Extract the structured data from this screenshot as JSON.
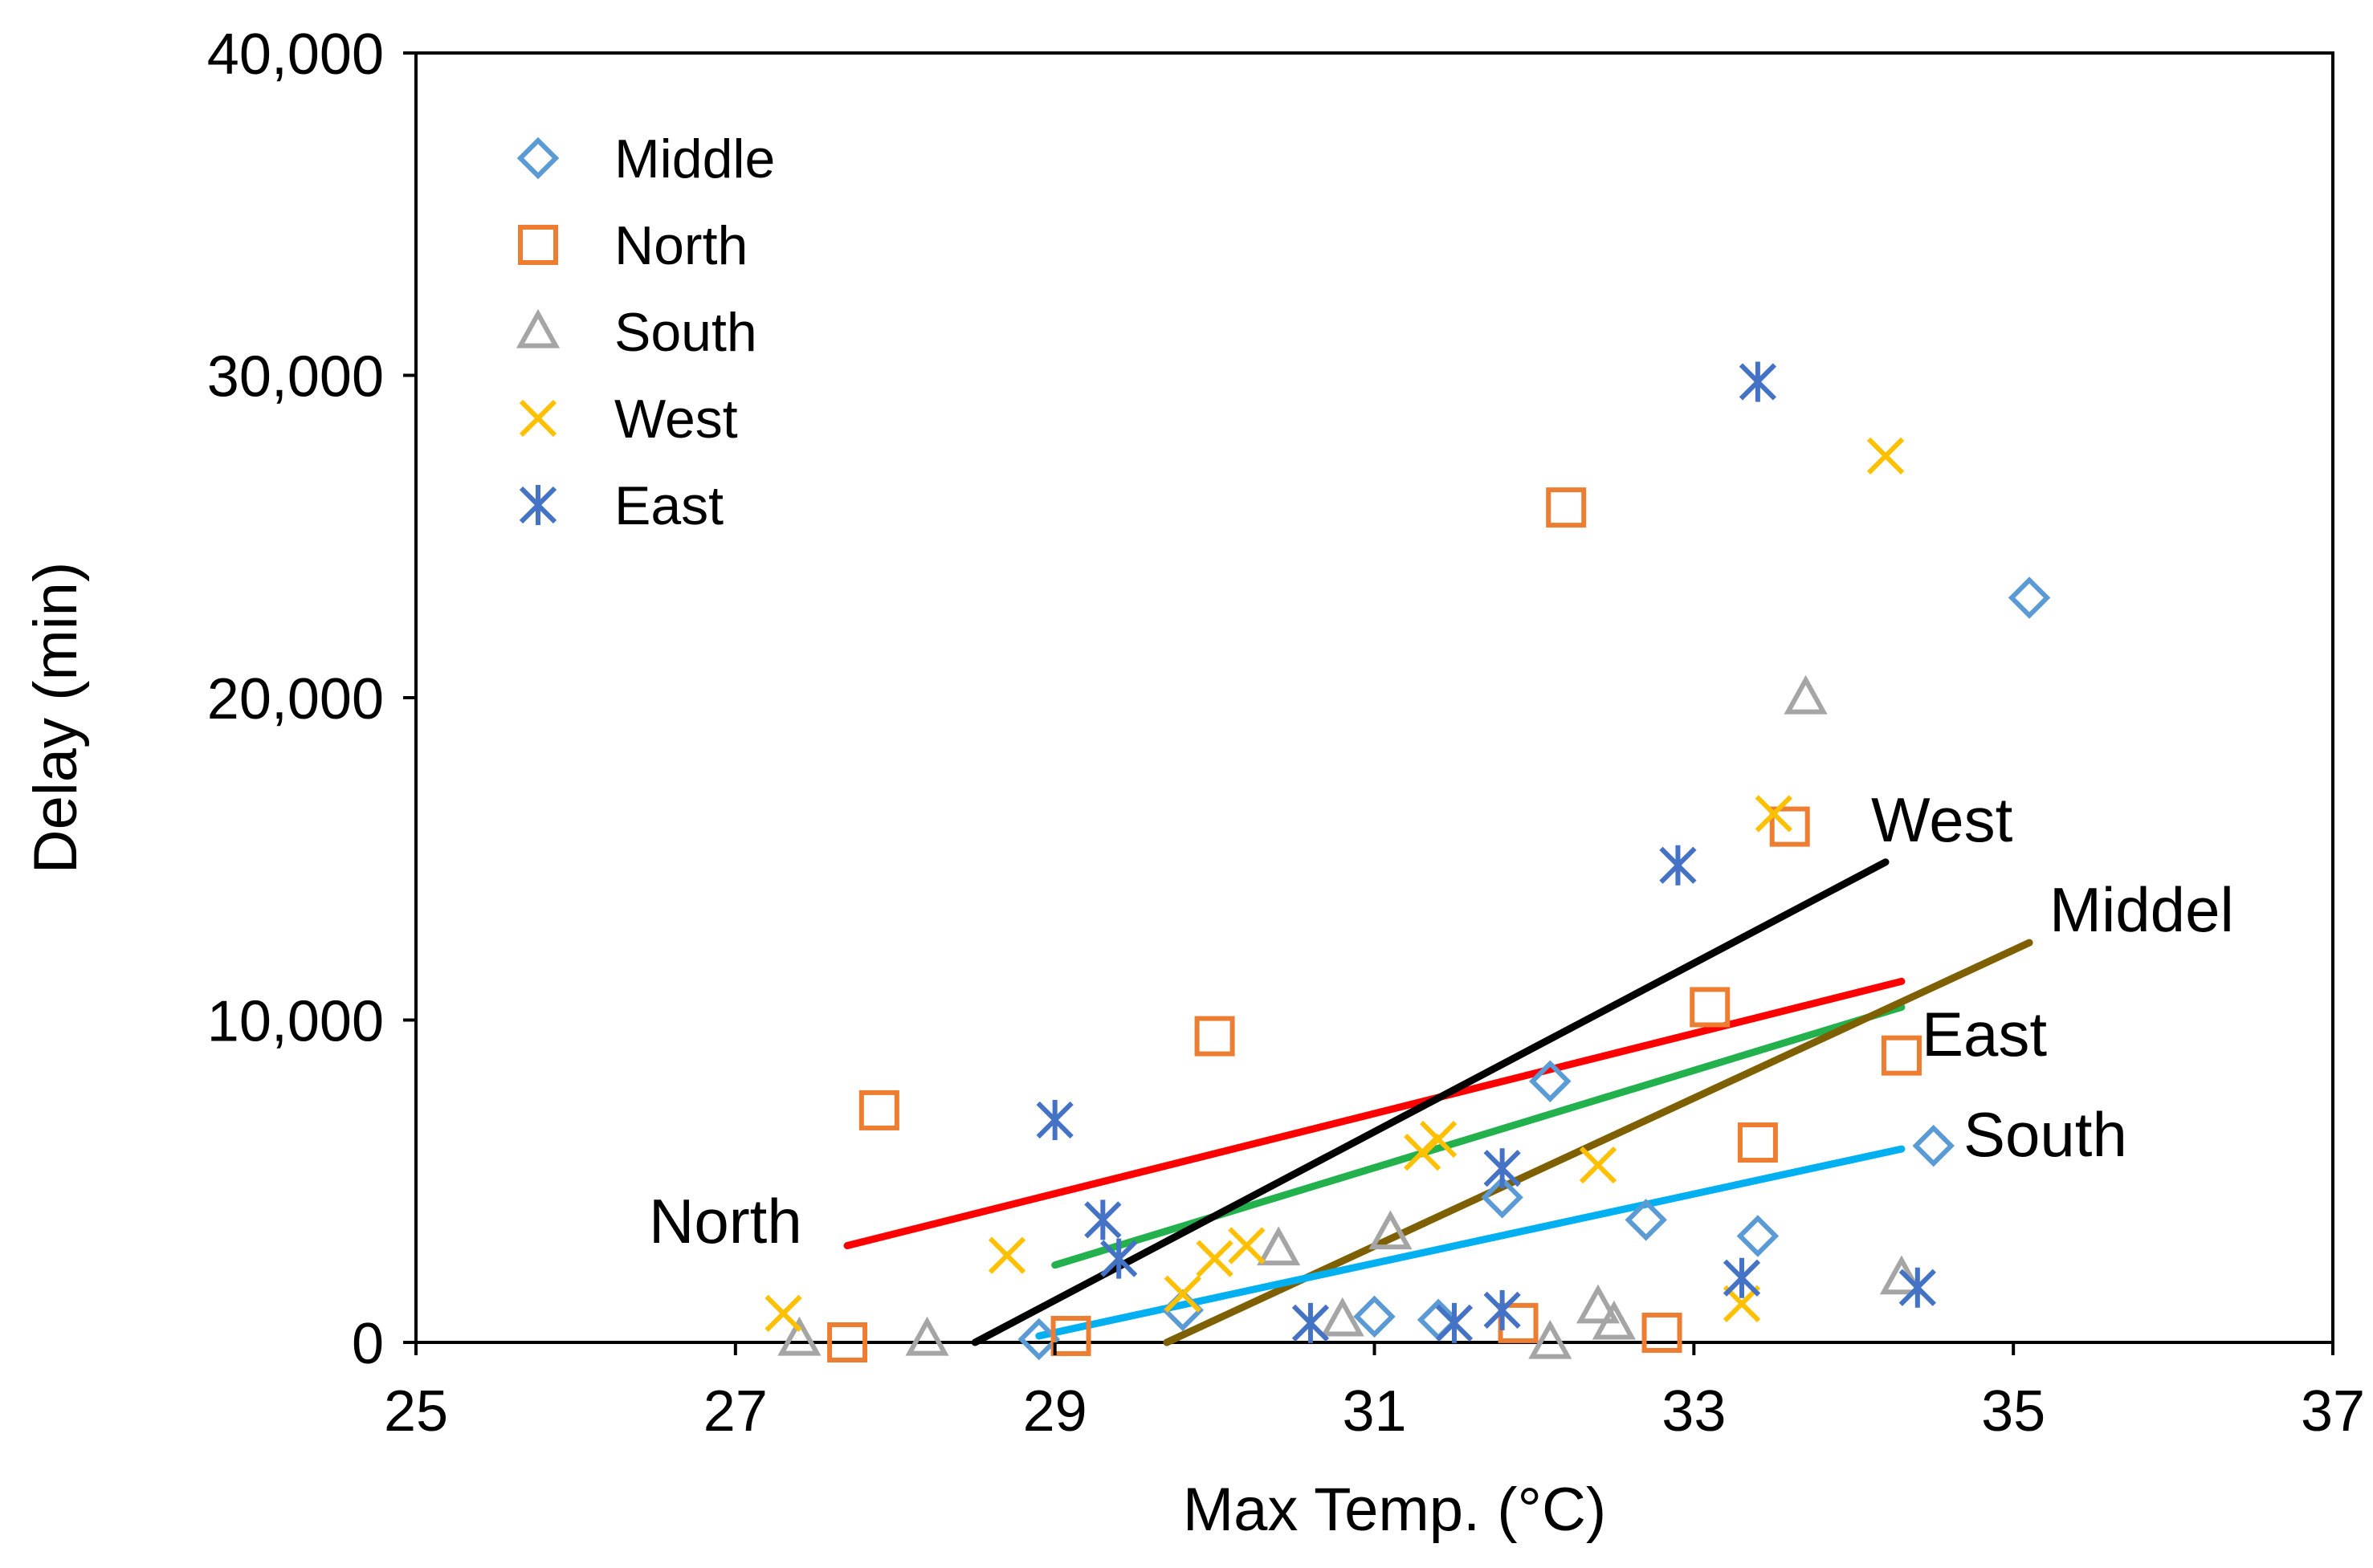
{
  "chart_data": {
    "type": "scatter",
    "title": "",
    "xlabel": "Max Temp. (°C)",
    "ylabel": "Delay (min)",
    "xlim": [
      25,
      37
    ],
    "ylim": [
      0,
      40000
    ],
    "xticks": [
      25,
      27,
      29,
      31,
      33,
      35,
      37
    ],
    "yticks": [
      0,
      10000,
      20000,
      30000,
      40000
    ],
    "x_tick_labels": [
      "25",
      "27",
      "29",
      "31",
      "33",
      "35",
      "37"
    ],
    "y_tick_labels": [
      "0",
      "10,000",
      "20,000",
      "30,000",
      "40,000"
    ],
    "grid": false,
    "legend_position": "top-left",
    "series": [
      {
        "name": "Middle",
        "marker": "diamond",
        "color": "#5B9BD5",
        "points": [
          [
            28.9,
            100
          ],
          [
            29.8,
            1000
          ],
          [
            31.0,
            800
          ],
          [
            31.4,
            700
          ],
          [
            31.8,
            4500
          ],
          [
            32.1,
            8100
          ],
          [
            32.7,
            3800
          ],
          [
            33.4,
            3300
          ],
          [
            34.5,
            6100
          ],
          [
            35.1,
            23100
          ]
        ]
      },
      {
        "name": "North",
        "marker": "square",
        "color": "#ED7D31",
        "points": [
          [
            27.7,
            0
          ],
          [
            27.9,
            7200
          ],
          [
            29.1,
            200
          ],
          [
            30.0,
            9500
          ],
          [
            31.9,
            600
          ],
          [
            32.2,
            25900
          ],
          [
            32.8,
            300
          ],
          [
            33.1,
            10400
          ],
          [
            33.4,
            6200
          ],
          [
            33.6,
            16000
          ],
          [
            34.3,
            8900
          ]
        ]
      },
      {
        "name": "South",
        "marker": "triangle",
        "color": "#A5A5A5",
        "points": [
          [
            27.4,
            100
          ],
          [
            28.2,
            100
          ],
          [
            30.4,
            2900
          ],
          [
            30.8,
            700
          ],
          [
            31.1,
            3400
          ],
          [
            32.1,
            0
          ],
          [
            32.4,
            1100
          ],
          [
            32.5,
            600
          ],
          [
            33.7,
            20000
          ],
          [
            34.3,
            2000
          ]
        ]
      },
      {
        "name": "West",
        "marker": "x",
        "color": "#FFC000",
        "points": [
          [
            27.3,
            900
          ],
          [
            28.7,
            2700
          ],
          [
            29.8,
            1500
          ],
          [
            30.0,
            2600
          ],
          [
            30.2,
            3000
          ],
          [
            31.3,
            5900
          ],
          [
            31.4,
            6300
          ],
          [
            32.4,
            5500
          ],
          [
            33.3,
            1200
          ],
          [
            33.5,
            16400
          ],
          [
            34.2,
            27500
          ]
        ]
      },
      {
        "name": "East",
        "marker": "asterisk",
        "color": "#4472C4",
        "points": [
          [
            29.0,
            6900
          ],
          [
            29.3,
            3800
          ],
          [
            29.4,
            2600
          ],
          [
            30.6,
            600
          ],
          [
            31.5,
            600
          ],
          [
            31.8,
            5400
          ],
          [
            31.8,
            1000
          ],
          [
            32.9,
            14800
          ],
          [
            33.3,
            2000
          ],
          [
            33.4,
            29800
          ],
          [
            34.4,
            1700
          ]
        ]
      }
    ],
    "trendlines": [
      {
        "name": "North",
        "label": "North",
        "color": "#FF0000",
        "x": [
          27.7,
          34.3
        ],
        "y": [
          3000,
          11200
        ]
      },
      {
        "name": "East",
        "label": "East",
        "color": "#22B14C",
        "x": [
          29.0,
          34.3
        ],
        "y": [
          2400,
          10400
        ]
      },
      {
        "name": "West",
        "label": "West",
        "color": "#000000",
        "x": [
          28.5,
          34.2
        ],
        "y": [
          0,
          14900
        ]
      },
      {
        "name": "Middle",
        "label": "Middel",
        "color": "#7F6000",
        "x": [
          29.7,
          35.1
        ],
        "y": [
          0,
          12400
        ]
      },
      {
        "name": "South",
        "label": "South",
        "color": "#00B0F0",
        "x": [
          28.9,
          34.3
        ],
        "y": [
          200,
          6000
        ]
      }
    ]
  }
}
